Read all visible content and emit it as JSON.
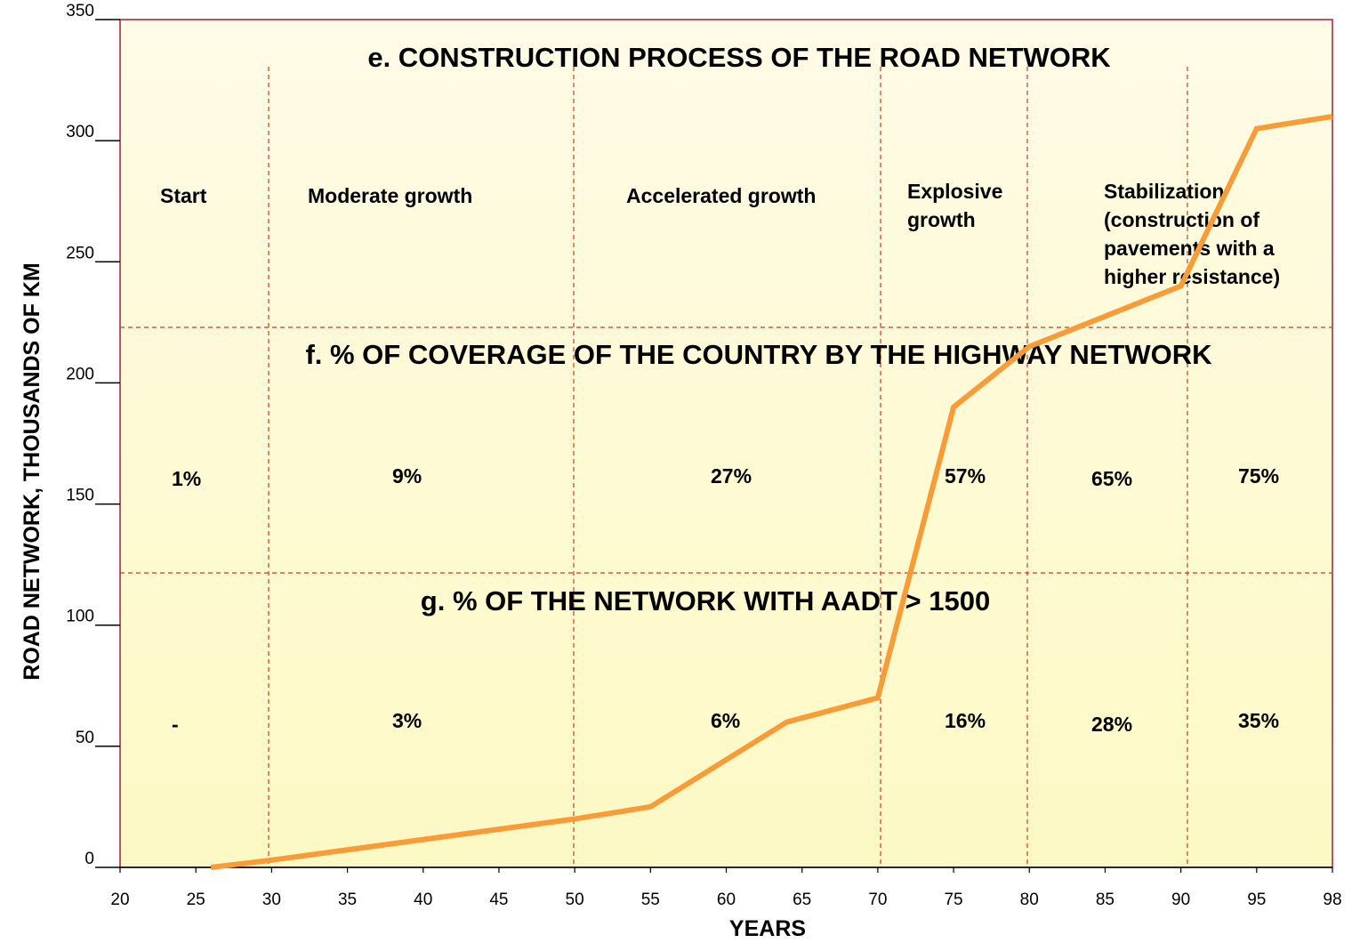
{
  "chart_data": {
    "type": "line",
    "x_label": "YEARS",
    "y_label": "ROAD NETWORK, THOUSANDS OF KM",
    "x": [
      26,
      30,
      50,
      55,
      64,
      70,
      75,
      80,
      90,
      95,
      98
    ],
    "series": [
      {
        "color": "#f99c38",
        "values": [
          0,
          3,
          20,
          25,
          60,
          70,
          190,
          215,
          240,
          305,
          310
        ]
      }
    ],
    "xlim": [
      20,
      98
    ],
    "xticks": [
      20,
      25,
      30,
      35,
      40,
      45,
      50,
      55,
      60,
      65,
      70,
      75,
      80,
      85,
      90,
      95,
      98
    ],
    "ylim": [
      0,
      350
    ],
    "yticks": [
      0,
      50,
      100,
      150,
      200,
      250,
      300,
      350
    ],
    "sections": [
      {
        "title": "e. CONSTRUCTION PROCESS OF THE ROAD NETWORK",
        "labels": [
          [
            "Start"
          ],
          [
            "Moderate growth"
          ],
          [
            "Accelerated growth"
          ],
          [
            "Explosive",
            "growth"
          ],
          [
            "Stabilization",
            "(construction of",
            "pavements with a",
            "higher resistance)"
          ]
        ]
      },
      {
        "title": "f. % OF COVERAGE OF THE COUNTRY BY THE HIGHWAY NETWORK",
        "labels": [
          [
            "1%"
          ],
          [
            "9%"
          ],
          [
            "27%"
          ],
          [
            "57%"
          ],
          [
            "65%"
          ],
          [
            "75%"
          ]
        ]
      },
      {
        "title": "g. % OF THE NETWORK WITH AADT > 1500",
        "labels": [
          [
            "-"
          ],
          [
            "3%"
          ],
          [
            "6%"
          ],
          [
            "16%"
          ],
          [
            "28%"
          ],
          [
            "35%"
          ]
        ]
      }
    ]
  }
}
